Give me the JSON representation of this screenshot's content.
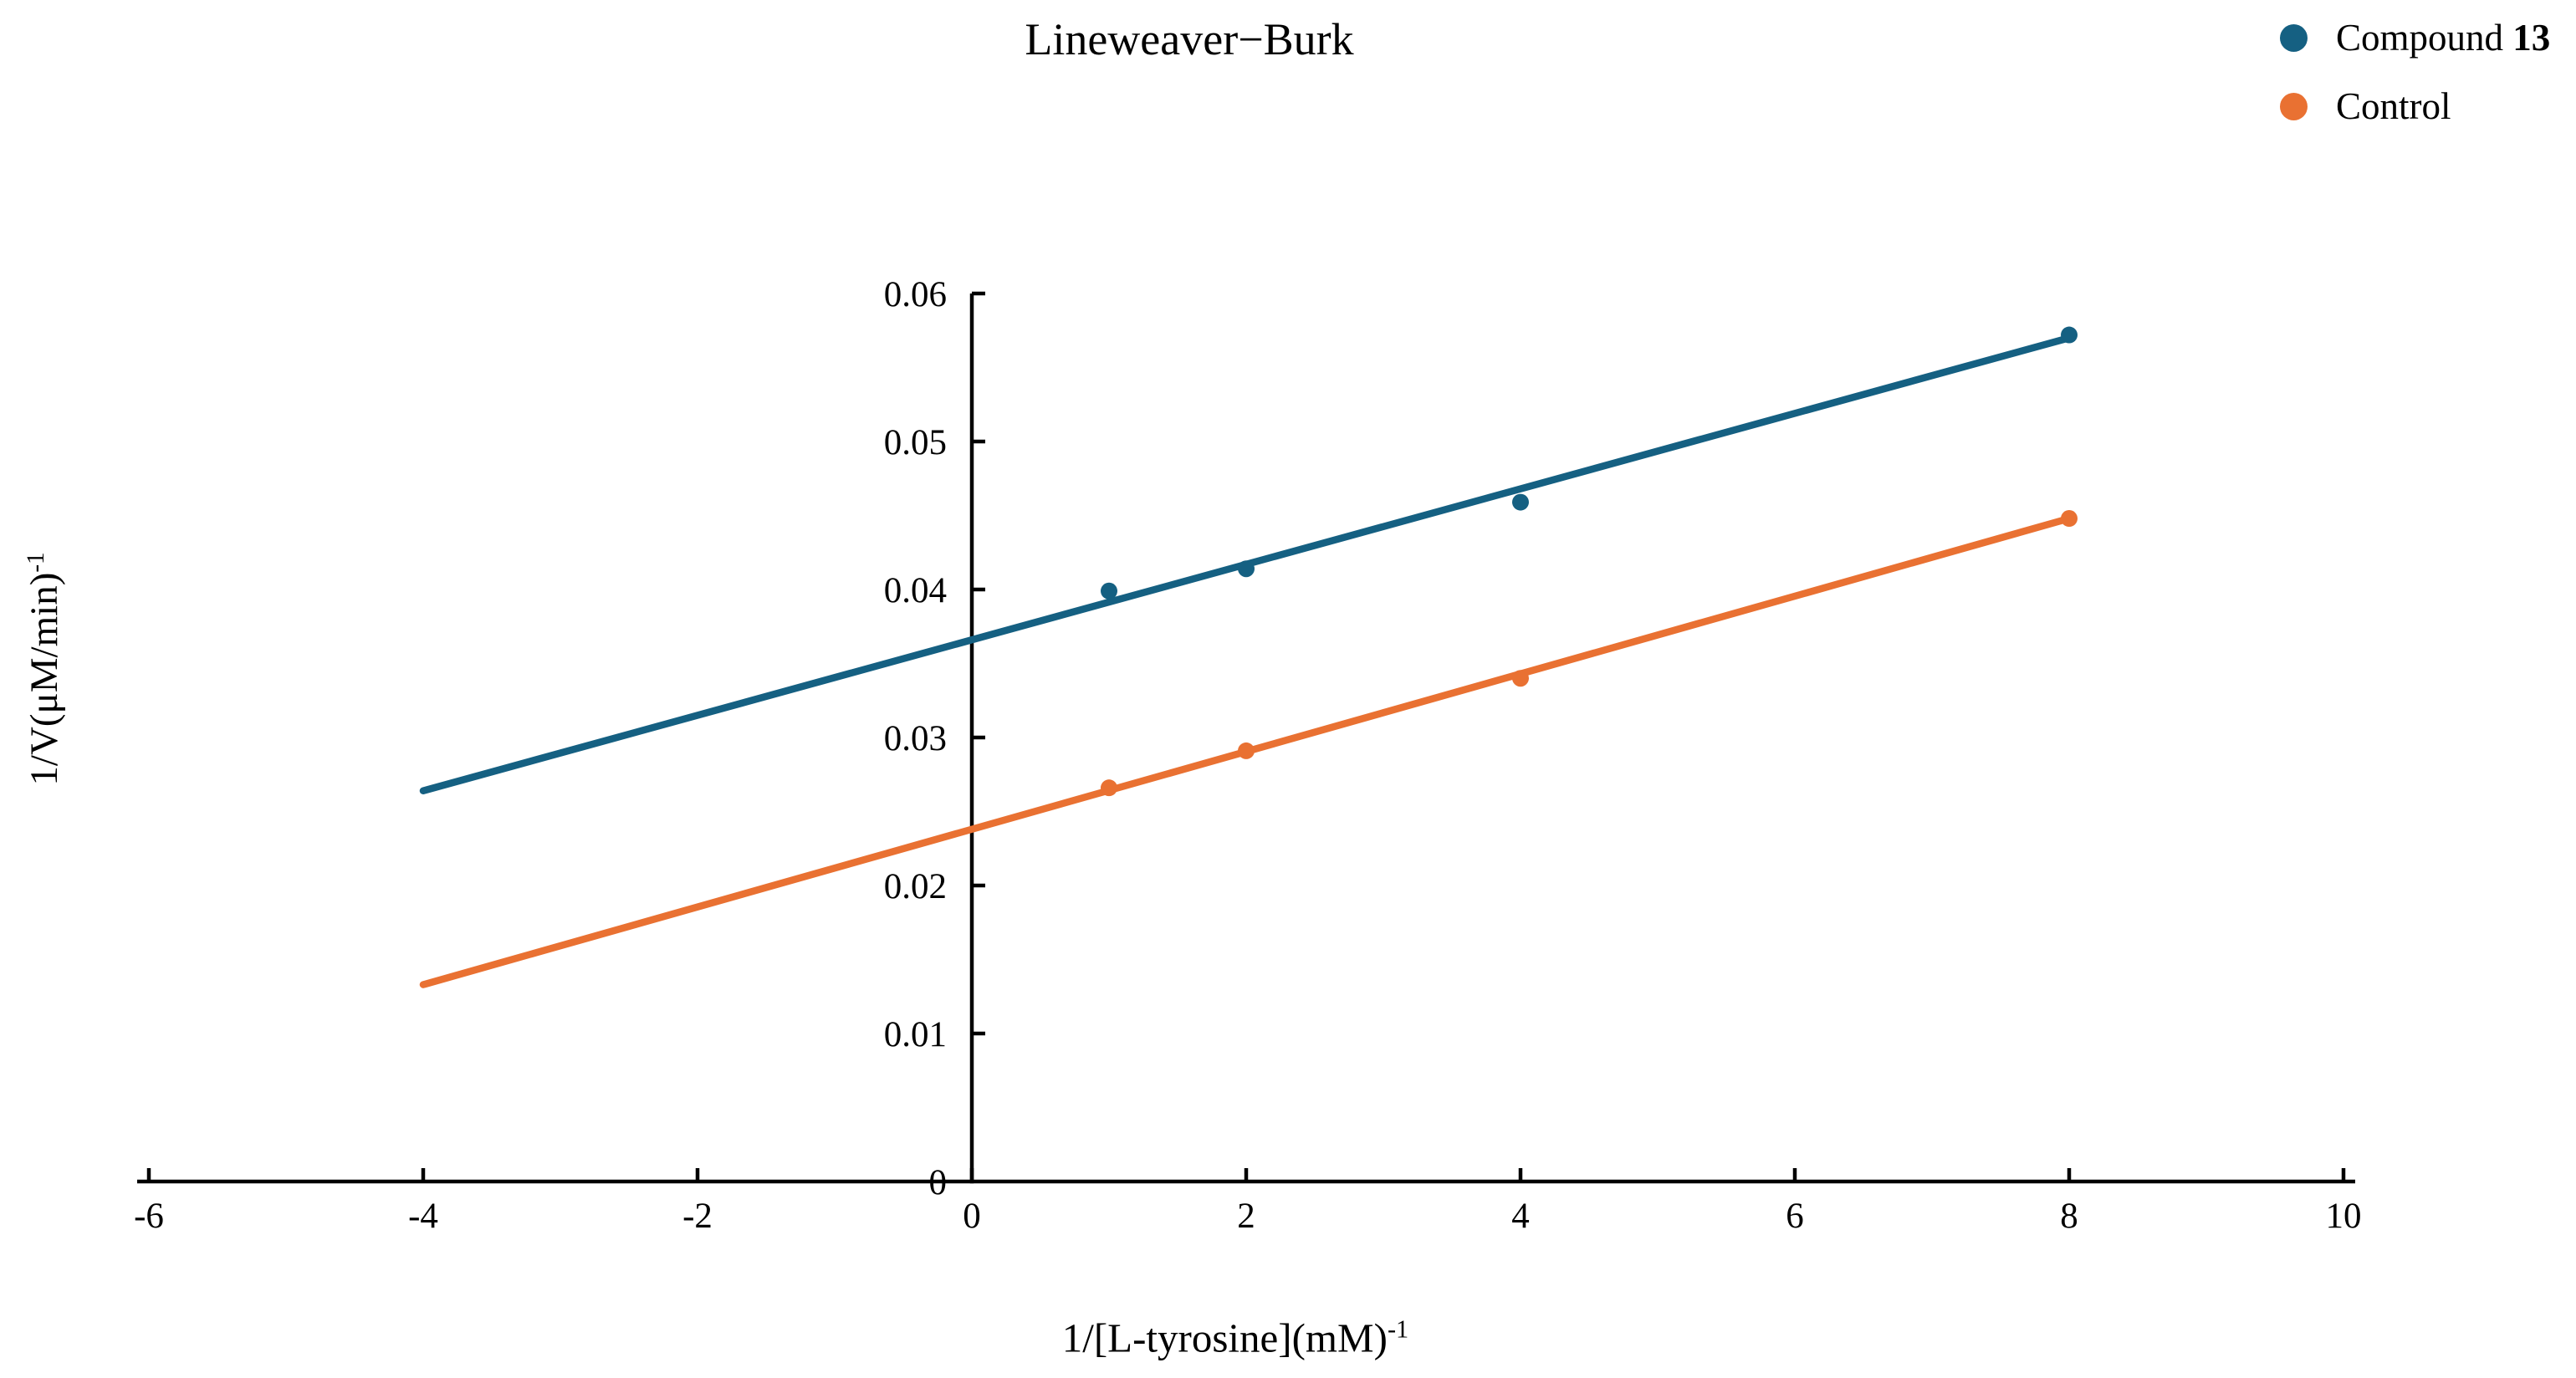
{
  "chart_data": {
    "type": "scatter",
    "title": "Lineweaver−Burk",
    "xlabel": {
      "base": "1/[L-tyrosine](mM)",
      "sup": "-1"
    },
    "ylabel": {
      "base": "1/V(μM/min)",
      "sup": "-1"
    },
    "xlim": [
      -6,
      10
    ],
    "ylim": [
      0,
      0.06
    ],
    "grid": false,
    "legend_position": "top-right",
    "xticks": {
      "values": [
        -6,
        -4,
        -2,
        0,
        2,
        4,
        6,
        8,
        10
      ],
      "labels": [
        "-6",
        "-4",
        "-2",
        "0",
        "2",
        "4",
        "6",
        "8",
        "10"
      ]
    },
    "yticks": {
      "values": [
        0,
        0.01,
        0.02,
        0.03,
        0.04,
        0.05,
        0.06
      ],
      "labels": [
        "0",
        "0.01",
        "0.02",
        "0.03",
        "0.04",
        "0.05",
        "0.06"
      ]
    },
    "series": [
      {
        "name": "Compound 13",
        "legend": {
          "prefix": "Compound ",
          "bold": "13"
        },
        "color": "#156082",
        "points": [
          {
            "x": 1,
            "y": 0.0399
          },
          {
            "x": 2,
            "y": 0.0414
          },
          {
            "x": 4,
            "y": 0.0459
          },
          {
            "x": 8,
            "y": 0.0572
          }
        ],
        "trendline": {
          "x1": -4,
          "y1": 0.0264,
          "x2": 8,
          "y2": 0.057
        }
      },
      {
        "name": "Control",
        "legend": {
          "prefix": "Control",
          "bold": ""
        },
        "color": "#E97132",
        "points": [
          {
            "x": 1,
            "y": 0.0266
          },
          {
            "x": 2,
            "y": 0.0291
          },
          {
            "x": 4,
            "y": 0.034
          },
          {
            "x": 8,
            "y": 0.0448
          }
        ],
        "trendline": {
          "x1": -4,
          "y1": 0.0133,
          "x2": 8,
          "y2": 0.0448
        }
      }
    ]
  }
}
